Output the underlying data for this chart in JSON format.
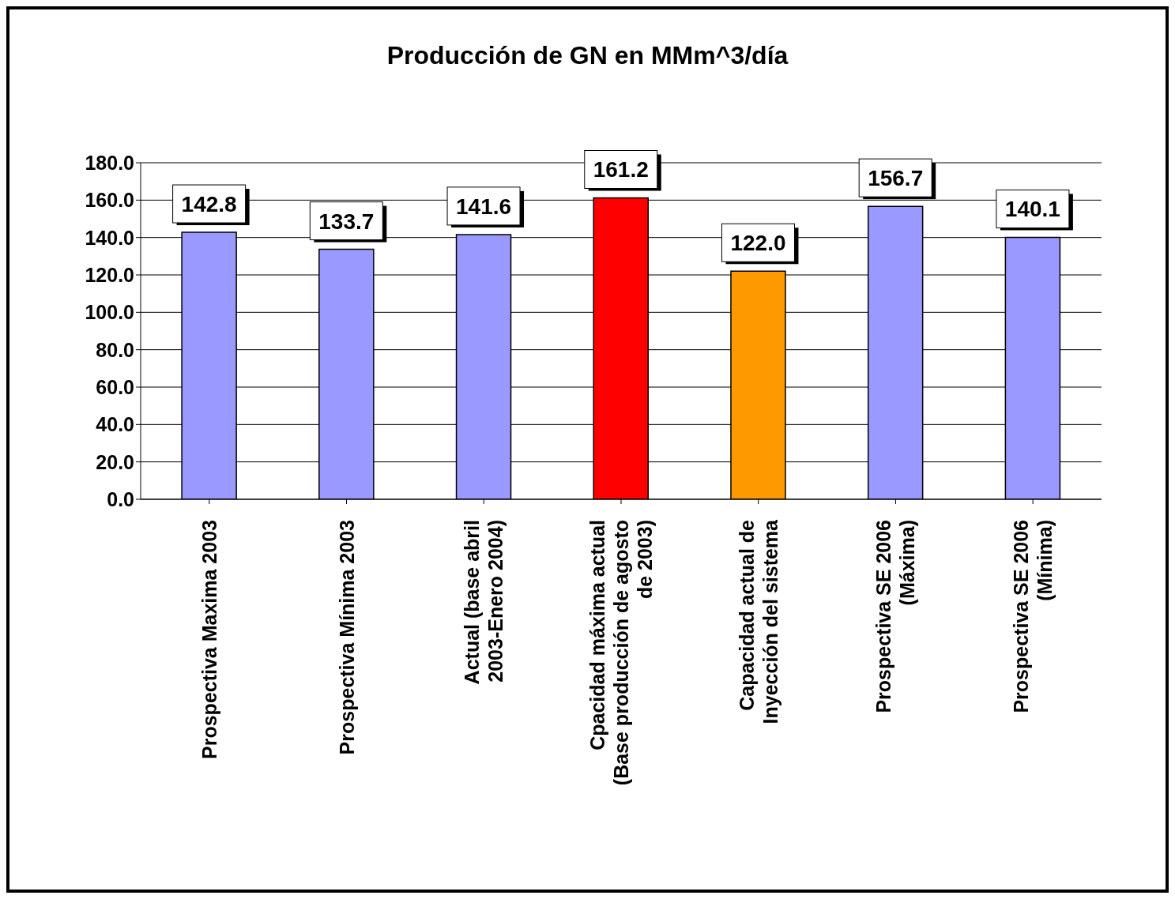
{
  "chart_data": {
    "type": "bar",
    "title": "Producción de GN en MMm^3/día",
    "categories": [
      "Prospectiva Maxima 2003",
      "Prospectiva Mínima 2003",
      "Actual (base abril 2003-Enero 2004)",
      "Cpacidad máxima actual (Base producción de agosto de 2003)",
      "Capacidad actual de Inyección del sistema",
      "Prospectiva SE 2006 (Máxima)",
      "Prospectiva SE 2006 (Mínima)"
    ],
    "values": [
      142.8,
      133.7,
      141.6,
      161.2,
      122.0,
      156.7,
      140.1
    ],
    "value_labels": [
      "142.8",
      "133.7",
      "141.6",
      "161.2",
      "122.0",
      "156.7",
      "140.1"
    ],
    "colors": [
      "#9999ff",
      "#9999ff",
      "#9999ff",
      "#ff0000",
      "#ff9900",
      "#9999ff",
      "#9999ff"
    ],
    "ylim": [
      0,
      180
    ],
    "yticks": [
      {
        "value": 0,
        "label": "0.0"
      },
      {
        "value": 20,
        "label": "20.0"
      },
      {
        "value": 40,
        "label": "40.0"
      },
      {
        "value": 60,
        "label": "60.0"
      },
      {
        "value": 80,
        "label": "80.0"
      },
      {
        "value": 100,
        "label": "100.0"
      },
      {
        "value": 120,
        "label": "120.0"
      },
      {
        "value": 140,
        "label": "140.0"
      },
      {
        "value": 160,
        "label": "160.0"
      },
      {
        "value": 180,
        "label": "180.0"
      }
    ],
    "grid": "y"
  }
}
